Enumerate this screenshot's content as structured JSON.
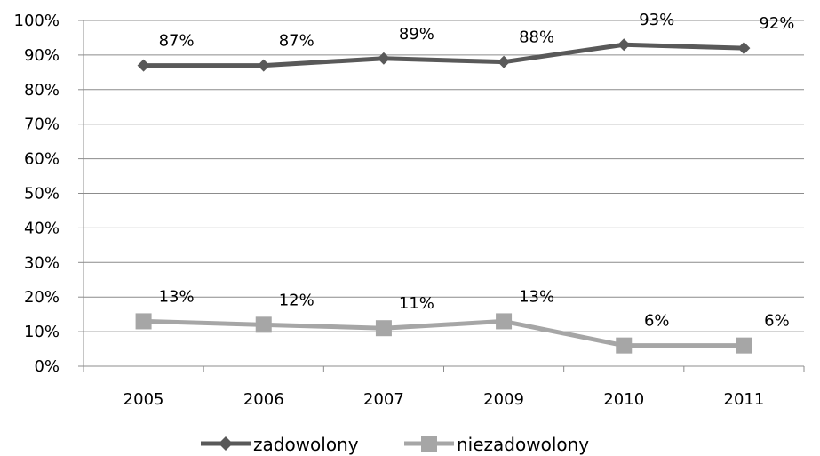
{
  "chart_data": {
    "type": "line",
    "categories": [
      "2005",
      "2006",
      "2007",
      "2009",
      "2010",
      "2011"
    ],
    "series": [
      {
        "name": "zadowolony",
        "values": [
          87,
          87,
          89,
          88,
          93,
          92
        ],
        "labels": [
          "87%",
          "87%",
          "89%",
          "88%",
          "93%",
          "92%"
        ],
        "color": "#595959",
        "marker": "diamond"
      },
      {
        "name": "niezadowolony",
        "values": [
          13,
          12,
          11,
          13,
          6,
          6
        ],
        "labels": [
          "13%",
          "12%",
          "11%",
          "13%",
          "6%",
          "6%"
        ],
        "color": "#a6a6a6",
        "marker": "square"
      }
    ],
    "y_ticks": [
      "0%",
      "10%",
      "20%",
      "30%",
      "40%",
      "50%",
      "60%",
      "70%",
      "80%",
      "90%",
      "100%"
    ],
    "ylim": [
      0,
      100
    ],
    "grid": true,
    "legend_position": "bottom",
    "gridline_color": "#8c8c8c"
  }
}
